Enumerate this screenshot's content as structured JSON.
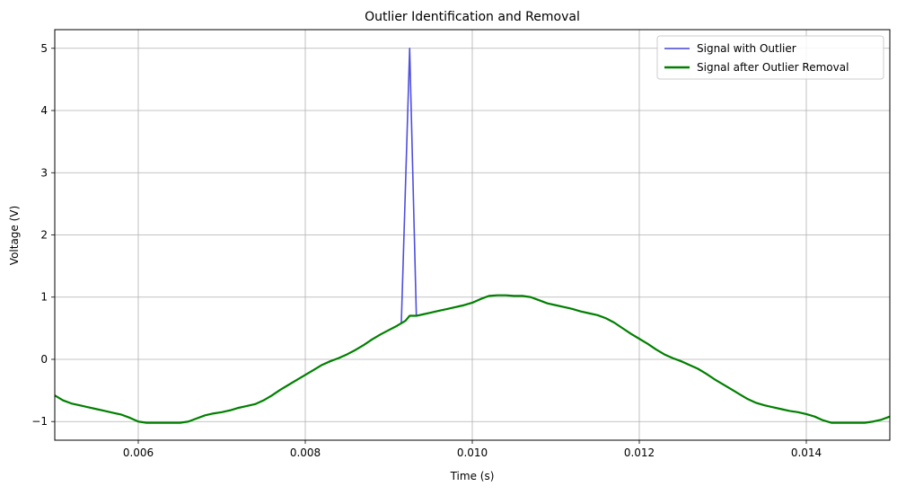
{
  "chart_data": {
    "type": "line",
    "title": "Outlier Identification and Removal",
    "xlabel": "Time (s)",
    "ylabel": "Voltage (V)",
    "xlim": [
      0.005,
      0.015
    ],
    "ylim": [
      -1.3,
      5.3
    ],
    "x_ticks": [
      0.006,
      0.008,
      0.01,
      0.012,
      0.014
    ],
    "x_tick_labels": [
      "0.006",
      "0.008",
      "0.010",
      "0.012",
      "0.014"
    ],
    "y_ticks": [
      -1,
      0,
      1,
      2,
      3,
      4,
      5
    ],
    "y_tick_labels": [
      "−1",
      "0",
      "1",
      "2",
      "3",
      "4",
      "5"
    ],
    "grid": true,
    "legend_position": "top-right",
    "series": [
      {
        "name": "Signal with Outlier",
        "color": "#4444dd",
        "points": [
          [
            0.00915,
            0.58
          ],
          [
            0.00925,
            5.0
          ],
          [
            0.00933,
            0.7
          ]
        ]
      },
      {
        "name": "Signal after Outlier Removal",
        "color": "#008000",
        "points": [
          [
            0.005,
            -0.58
          ],
          [
            0.0051,
            -0.66
          ],
          [
            0.0052,
            -0.71
          ],
          [
            0.0053,
            -0.74
          ],
          [
            0.0054,
            -0.77
          ],
          [
            0.0055,
            -0.8
          ],
          [
            0.0056,
            -0.83
          ],
          [
            0.0057,
            -0.86
          ],
          [
            0.0058,
            -0.89
          ],
          [
            0.0059,
            -0.94
          ],
          [
            0.006,
            -1.0
          ],
          [
            0.0061,
            -1.02
          ],
          [
            0.0062,
            -1.02
          ],
          [
            0.0063,
            -1.02
          ],
          [
            0.0064,
            -1.02
          ],
          [
            0.0065,
            -1.02
          ],
          [
            0.0066,
            -1.0
          ],
          [
            0.0067,
            -0.95
          ],
          [
            0.0068,
            -0.9
          ],
          [
            0.0069,
            -0.87
          ],
          [
            0.007,
            -0.85
          ],
          [
            0.0071,
            -0.82
          ],
          [
            0.0072,
            -0.78
          ],
          [
            0.0073,
            -0.75
          ],
          [
            0.0074,
            -0.72
          ],
          [
            0.0075,
            -0.66
          ],
          [
            0.0076,
            -0.58
          ],
          [
            0.0077,
            -0.49
          ],
          [
            0.0078,
            -0.41
          ],
          [
            0.0079,
            -0.33
          ],
          [
            0.008,
            -0.25
          ],
          [
            0.0081,
            -0.17
          ],
          [
            0.0082,
            -0.09
          ],
          [
            0.0083,
            -0.03
          ],
          [
            0.0084,
            0.02
          ],
          [
            0.0085,
            0.08
          ],
          [
            0.0086,
            0.15
          ],
          [
            0.0087,
            0.23
          ],
          [
            0.0088,
            0.32
          ],
          [
            0.0089,
            0.4
          ],
          [
            0.009,
            0.47
          ],
          [
            0.0091,
            0.54
          ],
          [
            0.00915,
            0.58
          ],
          [
            0.0092,
            0.62
          ],
          [
            0.00925,
            0.7
          ],
          [
            0.00933,
            0.7
          ],
          [
            0.0094,
            0.72
          ],
          [
            0.0095,
            0.75
          ],
          [
            0.0096,
            0.78
          ],
          [
            0.0097,
            0.81
          ],
          [
            0.0098,
            0.84
          ],
          [
            0.0099,
            0.87
          ],
          [
            0.01,
            0.91
          ],
          [
            0.0101,
            0.97
          ],
          [
            0.0102,
            1.02
          ],
          [
            0.0103,
            1.03
          ],
          [
            0.0104,
            1.03
          ],
          [
            0.0105,
            1.02
          ],
          [
            0.0106,
            1.02
          ],
          [
            0.0107,
            1.0
          ],
          [
            0.0108,
            0.95
          ],
          [
            0.0109,
            0.9
          ],
          [
            0.011,
            0.87
          ],
          [
            0.0111,
            0.84
          ],
          [
            0.0112,
            0.81
          ],
          [
            0.0113,
            0.77
          ],
          [
            0.0114,
            0.74
          ],
          [
            0.0115,
            0.71
          ],
          [
            0.0116,
            0.66
          ],
          [
            0.0117,
            0.59
          ],
          [
            0.0118,
            0.5
          ],
          [
            0.0119,
            0.41
          ],
          [
            0.012,
            0.33
          ],
          [
            0.0121,
            0.25
          ],
          [
            0.0122,
            0.16
          ],
          [
            0.0123,
            0.08
          ],
          [
            0.0124,
            0.02
          ],
          [
            0.0125,
            -0.03
          ],
          [
            0.0126,
            -0.09
          ],
          [
            0.0127,
            -0.15
          ],
          [
            0.0128,
            -0.23
          ],
          [
            0.0129,
            -0.32
          ],
          [
            0.013,
            -0.4
          ],
          [
            0.0131,
            -0.48
          ],
          [
            0.0132,
            -0.56
          ],
          [
            0.0133,
            -0.64
          ],
          [
            0.0134,
            -0.7
          ],
          [
            0.0135,
            -0.74
          ],
          [
            0.0136,
            -0.77
          ],
          [
            0.0137,
            -0.8
          ],
          [
            0.0138,
            -0.83
          ],
          [
            0.0139,
            -0.85
          ],
          [
            0.014,
            -0.88
          ],
          [
            0.0141,
            -0.92
          ],
          [
            0.0142,
            -0.98
          ],
          [
            0.0143,
            -1.02
          ],
          [
            0.0144,
            -1.02
          ],
          [
            0.0145,
            -1.02
          ],
          [
            0.0146,
            -1.02
          ],
          [
            0.0147,
            -1.02
          ],
          [
            0.0148,
            -1.0
          ],
          [
            0.0149,
            -0.97
          ],
          [
            0.015,
            -0.92
          ]
        ]
      }
    ]
  }
}
